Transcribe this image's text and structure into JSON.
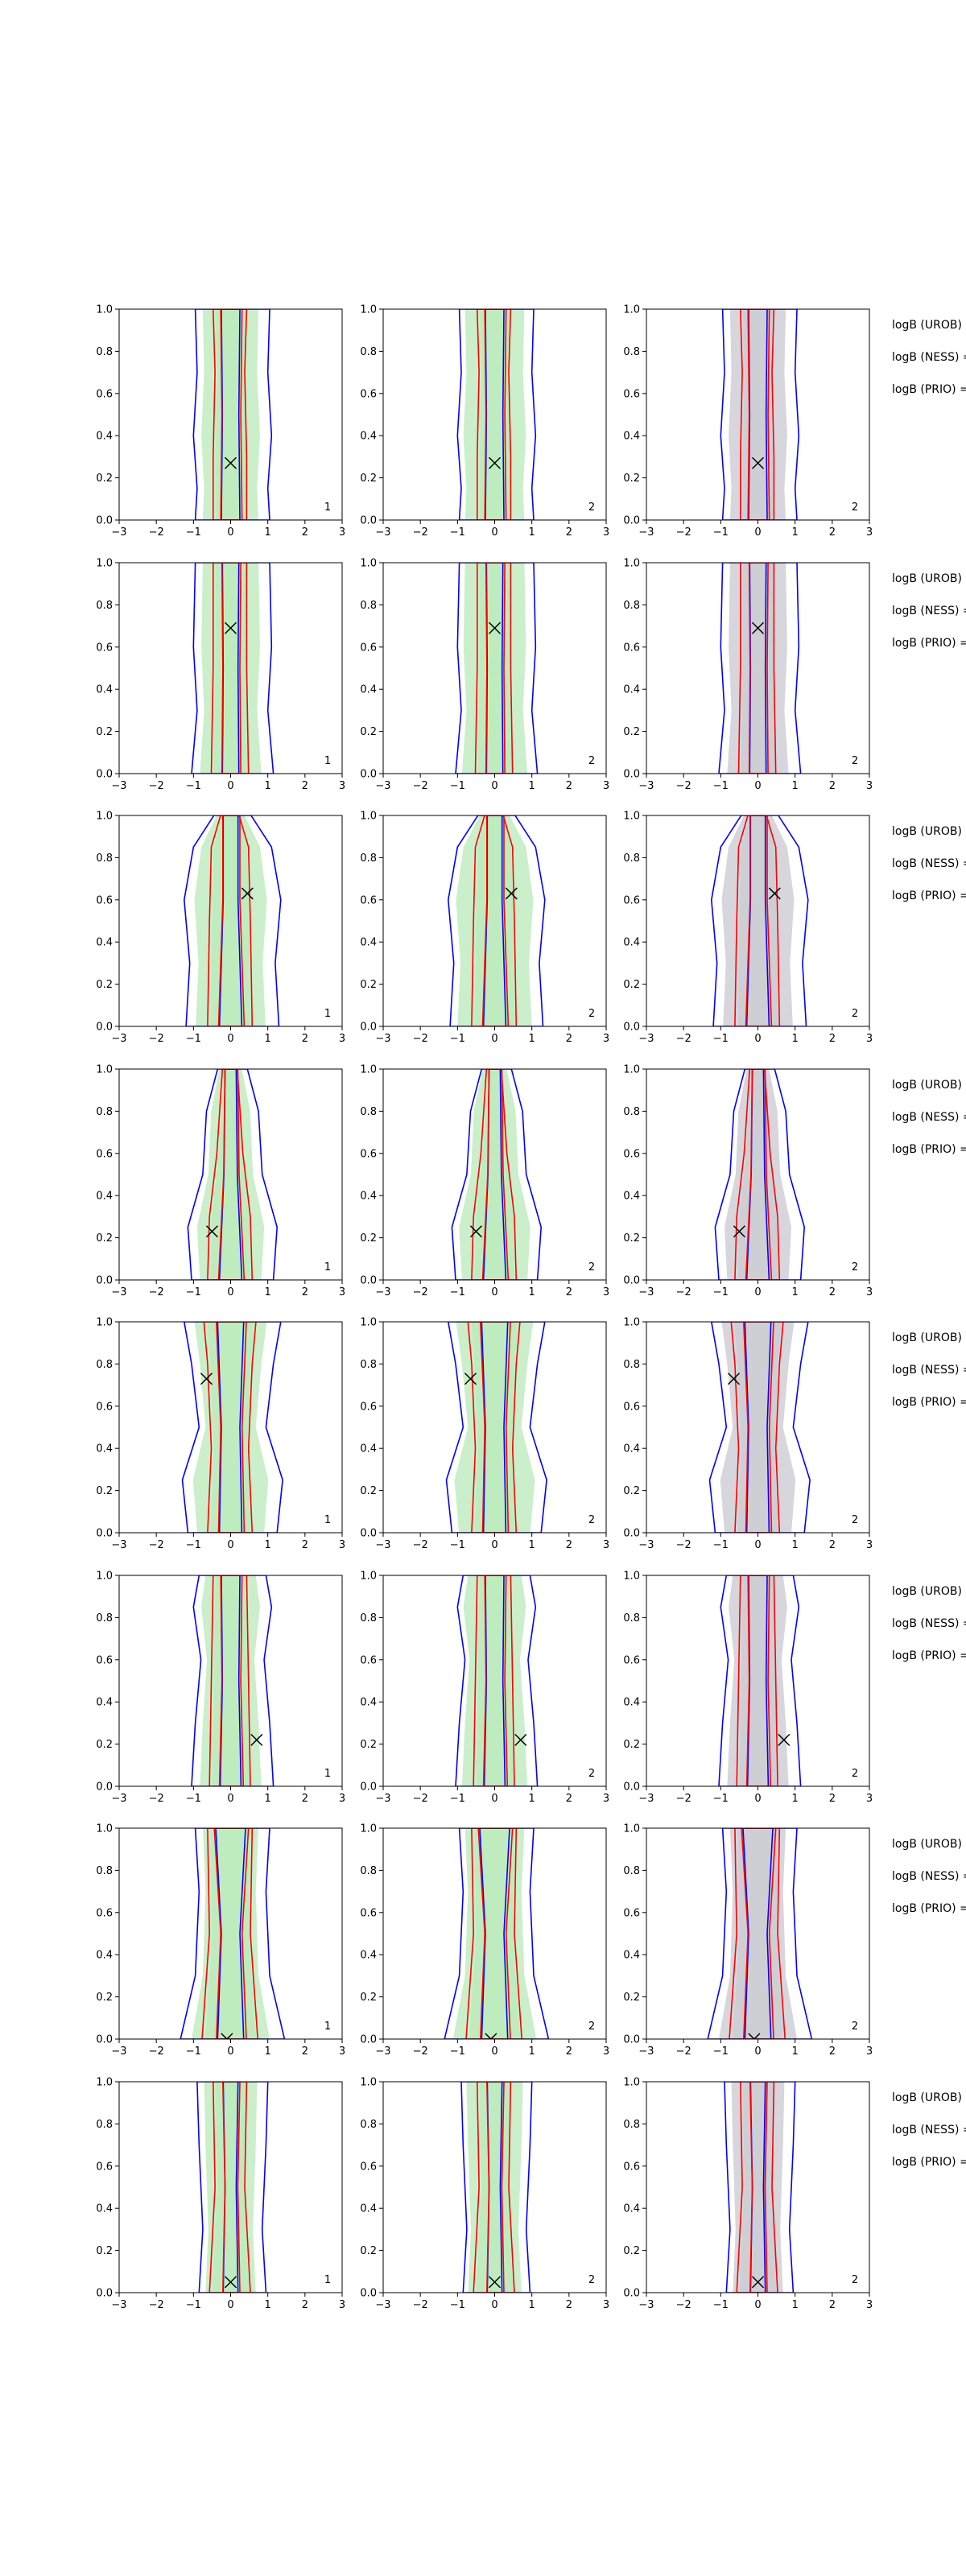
{
  "figure": {
    "title": "",
    "colors": {
      "blue": "#0000ff",
      "red": "#ff0000",
      "green_fill": "#b8eab8",
      "grey_fill": "#c8c8d0",
      "marker": "#000000"
    },
    "side_labels": [
      "logB (UROB) =",
      "logB (NESS) =",
      "logB (PRIO) ="
    ]
  },
  "chart_data": {
    "type": "contour-grid",
    "rows": 8,
    "cols": 3,
    "xlim": [
      -3,
      3
    ],
    "ylim": [
      0,
      1
    ],
    "xticks": [
      -3,
      -2,
      -1,
      0,
      1,
      2,
      3
    ],
    "yticks": [
      0.0,
      0.2,
      0.4,
      0.6,
      0.8,
      1.0
    ],
    "xtick_labels": [
      "−3",
      "−2",
      "−1",
      "0",
      "1",
      "2",
      "3"
    ],
    "ytick_labels": [
      "0.0",
      "0.2",
      "0.4",
      "0.6",
      "0.8",
      "1.0"
    ],
    "panel_labels": [
      "1",
      "2",
      "2"
    ],
    "markers": [
      {
        "row": 1,
        "x": 0.0,
        "y": 0.27
      },
      {
        "row": 2,
        "x": 0.0,
        "y": 0.69
      },
      {
        "row": 3,
        "x": 0.45,
        "y": 0.63
      },
      {
        "row": 4,
        "x": -0.5,
        "y": 0.23
      },
      {
        "row": 5,
        "x": -0.65,
        "y": 0.73
      },
      {
        "row": 6,
        "x": 0.7,
        "y": 0.22
      },
      {
        "row": 7,
        "x": -0.1,
        "y": 0.0
      },
      {
        "row": 8,
        "x": 0.0,
        "y": 0.05
      }
    ],
    "series": [
      {
        "name": "blue contour",
        "color": "#0000ff"
      },
      {
        "name": "red contour",
        "color": "#ff0000"
      },
      {
        "name": "reference density (col 1–2)",
        "color": "#b8eab8"
      },
      {
        "name": "reference density (col 3)",
        "color": "#c8c8d0"
      }
    ]
  }
}
